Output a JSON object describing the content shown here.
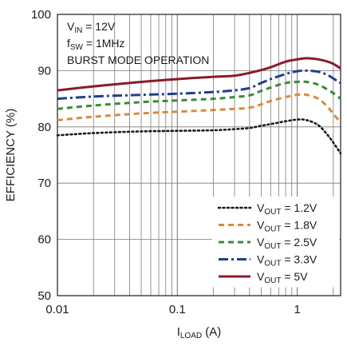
{
  "chart_data": {
    "type": "line",
    "title": "",
    "xlabel": {
      "main": "I",
      "sub": "LOAD",
      "suffix": " (A)"
    },
    "ylabel": "EFFICIENCY (%)",
    "xscale": "log",
    "xlim": [
      0.01,
      2.3
    ],
    "ylim": [
      50,
      100
    ],
    "xticks": [
      0.01,
      0.1,
      1
    ],
    "xtick_labels": [
      "0.01",
      "0.1",
      "1"
    ],
    "yticks": [
      50,
      60,
      70,
      80,
      90,
      100
    ],
    "ytick_labels": [
      "50",
      "60",
      "70",
      "80",
      "90",
      "100"
    ],
    "grid": true,
    "legend_position": "bottom-right",
    "annotations": [
      {
        "main": "V",
        "sub": "IN",
        "suffix": " = 12V"
      },
      {
        "main": "f",
        "sub": "SW",
        "suffix": " = 1MHz"
      },
      {
        "main": "BURST MODE OPERATION",
        "sub": "",
        "suffix": ""
      }
    ],
    "series": [
      {
        "name": "1.2V",
        "legend_prefix": "V",
        "legend_sub": "OUT",
        "legend_suffix": " = 1.2V",
        "color": "#1a1a1a",
        "dash": "dotted",
        "points": [
          [
            0.01,
            78.5
          ],
          [
            0.02,
            78.9
          ],
          [
            0.05,
            79.2
          ],
          [
            0.1,
            79.3
          ],
          [
            0.2,
            79.4
          ],
          [
            0.3,
            79.6
          ],
          [
            0.4,
            79.8
          ],
          [
            0.5,
            80.2
          ],
          [
            0.6,
            80.5
          ],
          [
            0.8,
            81.0
          ],
          [
            1.0,
            81.3
          ],
          [
            1.2,
            81.2
          ],
          [
            1.5,
            80.3
          ],
          [
            1.8,
            78.5
          ],
          [
            2.0,
            77.2
          ],
          [
            2.3,
            75.3
          ]
        ]
      },
      {
        "name": "1.8V",
        "legend_prefix": "V",
        "legend_sub": "OUT",
        "legend_suffix": " = 1.8V",
        "color": "#d98a3c",
        "dash": "dashed",
        "points": [
          [
            0.01,
            81.2
          ],
          [
            0.02,
            81.8
          ],
          [
            0.05,
            82.4
          ],
          [
            0.1,
            82.7
          ],
          [
            0.2,
            83.0
          ],
          [
            0.3,
            83.2
          ],
          [
            0.4,
            83.4
          ],
          [
            0.5,
            84.0
          ],
          [
            0.6,
            84.6
          ],
          [
            0.8,
            85.3
          ],
          [
            1.0,
            85.7
          ],
          [
            1.2,
            85.7
          ],
          [
            1.5,
            85.0
          ],
          [
            1.8,
            83.5
          ],
          [
            2.0,
            82.3
          ],
          [
            2.3,
            80.8
          ]
        ]
      },
      {
        "name": "2.5V",
        "legend_prefix": "V",
        "legend_sub": "OUT",
        "legend_suffix": " = 2.5V",
        "color": "#3a8a3a",
        "dash": "dashed",
        "points": [
          [
            0.01,
            83.2
          ],
          [
            0.02,
            83.8
          ],
          [
            0.05,
            84.4
          ],
          [
            0.1,
            84.7
          ],
          [
            0.2,
            85.0
          ],
          [
            0.3,
            85.3
          ],
          [
            0.4,
            85.6
          ],
          [
            0.5,
            86.4
          ],
          [
            0.6,
            87.0
          ],
          [
            0.8,
            87.8
          ],
          [
            1.0,
            88.0
          ],
          [
            1.2,
            88.0
          ],
          [
            1.5,
            87.5
          ],
          [
            1.8,
            86.6
          ],
          [
            2.0,
            86.0
          ],
          [
            2.3,
            85.0
          ]
        ]
      },
      {
        "name": "3.3V",
        "legend_prefix": "V",
        "legend_sub": "OUT",
        "legend_suffix": " = 3.3V",
        "color": "#1f3f8f",
        "dash": "dashdot",
        "points": [
          [
            0.01,
            85.0
          ],
          [
            0.02,
            85.4
          ],
          [
            0.05,
            85.7
          ],
          [
            0.1,
            85.9
          ],
          [
            0.2,
            86.2
          ],
          [
            0.3,
            86.5
          ],
          [
            0.4,
            86.9
          ],
          [
            0.5,
            87.8
          ],
          [
            0.6,
            88.5
          ],
          [
            0.8,
            89.4
          ],
          [
            1.0,
            89.9
          ],
          [
            1.2,
            90.0
          ],
          [
            1.5,
            89.8
          ],
          [
            1.8,
            89.2
          ],
          [
            2.0,
            88.6
          ],
          [
            2.3,
            87.8
          ]
        ]
      },
      {
        "name": "5V",
        "legend_prefix": "V",
        "legend_sub": "OUT",
        "legend_suffix": " = 5V",
        "color": "#8b1a2b",
        "dash": "solid",
        "points": [
          [
            0.01,
            86.5
          ],
          [
            0.02,
            87.2
          ],
          [
            0.05,
            88.0
          ],
          [
            0.1,
            88.5
          ],
          [
            0.2,
            88.9
          ],
          [
            0.3,
            89.1
          ],
          [
            0.4,
            89.6
          ],
          [
            0.5,
            90.1
          ],
          [
            0.6,
            90.6
          ],
          [
            0.8,
            91.6
          ],
          [
            1.0,
            92.0
          ],
          [
            1.2,
            92.2
          ],
          [
            1.5,
            92.0
          ],
          [
            1.8,
            91.6
          ],
          [
            2.0,
            91.2
          ],
          [
            2.3,
            90.4
          ]
        ]
      }
    ]
  }
}
